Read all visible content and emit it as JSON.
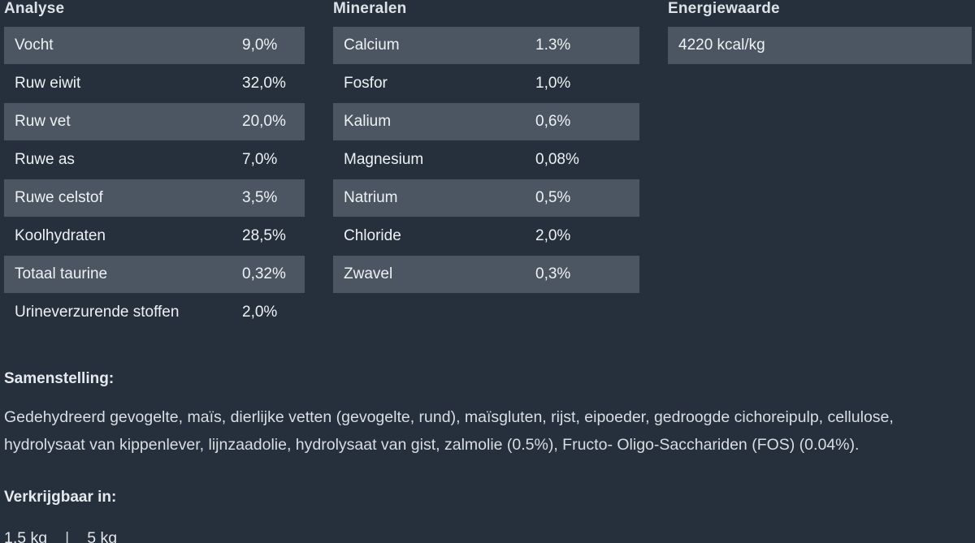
{
  "colors": {
    "background": "#25303c",
    "row_highlight": "#4c5662",
    "heading_text": "#dde2e7",
    "body_text": "#d9dee3"
  },
  "sections": {
    "analyse": {
      "title": "Analyse",
      "rows": [
        {
          "label": "Vocht",
          "value": "9,0%"
        },
        {
          "label": "Ruw eiwit",
          "value": "32,0%"
        },
        {
          "label": "Ruw vet",
          "value": "20,0%"
        },
        {
          "label": "Ruwe as",
          "value": "7,0%"
        },
        {
          "label": "Ruwe celstof",
          "value": "3,5%"
        },
        {
          "label": "Koolhydraten",
          "value": "28,5%"
        },
        {
          "label": "Totaal taurine",
          "value": "0,32%"
        },
        {
          "label": "Urineverzurende stoffen",
          "value": "2,0%"
        }
      ]
    },
    "mineralen": {
      "title": "Mineralen",
      "rows": [
        {
          "label": "Calcium",
          "value": "1.3%"
        },
        {
          "label": "Fosfor",
          "value": "1,0%"
        },
        {
          "label": "Kalium",
          "value": "0,6%"
        },
        {
          "label": "Magnesium",
          "value": "0,08%"
        },
        {
          "label": "Natrium",
          "value": "0,5%"
        },
        {
          "label": "Chloride",
          "value": "2,0%"
        },
        {
          "label": "Zwavel",
          "value": "0,3%"
        }
      ]
    },
    "energiewaarde": {
      "title": "Energiewaarde",
      "value": "4220 kcal/kg"
    }
  },
  "samenstelling": {
    "title": "Samenstelling:",
    "text": "Gedehydreerd gevogelte, maïs, dierlijke vetten (gevogelte, rund), maïsgluten, rijst, eipoeder, gedroogde cichoreipulp, cellulose, hydrolysaat van kippenlever, lijnzaadolie, hydrolysaat van gist, zalmolie (0.5%), Fructo- Oligo-Sacchariden (FOS) (0.04%)."
  },
  "verkrijgbaar": {
    "title": "Verkrijgbaar in:",
    "sizes": [
      "1,5 kg",
      "5 kg"
    ],
    "separator": "|"
  }
}
